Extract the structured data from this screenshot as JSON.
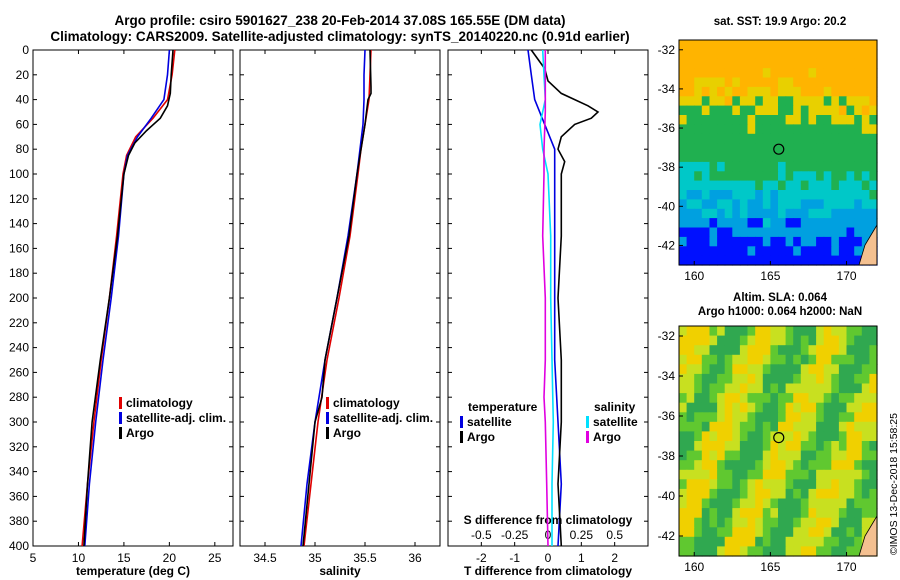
{
  "header": {
    "line1": "Argo profile: csiro 5901627_238 20-Feb-2014 37.08S 165.55E (DM data)",
    "line2": "Climatology: CARS2009. Satellite-adjusted climatology: synTS_20140220.nc (0.91d earlier)"
  },
  "colors": {
    "climatology": "#e00000",
    "satellite": "#0000e0",
    "argo": "#000000",
    "sat_salinity": "#00e0ff",
    "clim_salinity": "#e000e0"
  },
  "chart_data": [
    {
      "type": "line",
      "id": "temperature",
      "xlabel": "temperature (deg C)",
      "ylabel": "",
      "xlim": [
        5,
        27
      ],
      "ylim": [
        0,
        400
      ],
      "y_reversed": true,
      "xticks": [
        "5",
        "10",
        "15",
        "20",
        "25"
      ],
      "yticks": [
        "0",
        "20",
        "40",
        "60",
        "80",
        "100",
        "120",
        "140",
        "160",
        "180",
        "200",
        "220",
        "240",
        "260",
        "280",
        "300",
        "320",
        "340",
        "360",
        "380",
        "400"
      ],
      "legend": [
        "climatology",
        "satellite-adj. clim.",
        "Argo"
      ],
      "series": [
        {
          "name": "climatology",
          "depth": [
            0,
            20,
            40,
            55,
            70,
            85,
            100,
            150,
            200,
            250,
            300,
            350,
            400
          ],
          "values": [
            20.6,
            20.3,
            19.8,
            18.2,
            16.3,
            15.3,
            14.9,
            14.2,
            13.4,
            12.5,
            11.7,
            11.0,
            10.4
          ]
        },
        {
          "name": "satellite-adj. clim.",
          "depth": [
            0,
            20,
            40,
            55,
            70,
            85,
            100,
            150,
            200,
            250,
            300,
            350,
            400
          ],
          "values": [
            20.0,
            19.8,
            19.4,
            18.0,
            16.5,
            15.4,
            15.0,
            14.4,
            13.6,
            12.7,
            11.9,
            11.2,
            10.7
          ]
        },
        {
          "name": "Argo",
          "depth": [
            0,
            20,
            35,
            45,
            55,
            65,
            75,
            85,
            100,
            150,
            200,
            250,
            300,
            350,
            400
          ],
          "values": [
            20.4,
            20.2,
            20.1,
            19.8,
            19.0,
            17.5,
            16.2,
            15.5,
            15.0,
            14.3,
            13.4,
            12.4,
            11.5,
            11.0,
            10.6
          ]
        }
      ]
    },
    {
      "type": "line",
      "id": "salinity",
      "xlabel": "salinity",
      "ylabel": "",
      "xlim": [
        34.25,
        36.25
      ],
      "ylim": [
        0,
        400
      ],
      "y_reversed": true,
      "xticks": [
        "34.5",
        "35",
        "35.5",
        "36"
      ],
      "legend": [
        "climatology",
        "satellite-adj. clim.",
        "Argo"
      ],
      "series": [
        {
          "name": "climatology",
          "depth": [
            0,
            20,
            40,
            60,
            80,
            100,
            150,
            200,
            250,
            300,
            350,
            400
          ],
          "values": [
            35.56,
            35.55,
            35.54,
            35.5,
            35.46,
            35.43,
            35.35,
            35.24,
            35.12,
            35.03,
            34.96,
            34.89
          ]
        },
        {
          "name": "satellite-adj. clim.",
          "depth": [
            0,
            20,
            40,
            60,
            80,
            100,
            150,
            200,
            250,
            300,
            350,
            400
          ],
          "values": [
            35.5,
            35.49,
            35.49,
            35.48,
            35.45,
            35.42,
            35.33,
            35.22,
            35.1,
            35.0,
            34.92,
            34.86
          ]
        },
        {
          "name": "Argo",
          "depth": [
            0,
            30,
            35,
            40,
            60,
            80,
            100,
            150,
            200,
            250,
            280,
            300,
            350,
            400
          ],
          "values": [
            35.55,
            35.56,
            35.56,
            35.53,
            35.5,
            35.46,
            35.42,
            35.34,
            35.22,
            35.1,
            35.07,
            35.0,
            34.94,
            34.88
          ]
        }
      ]
    },
    {
      "type": "line",
      "id": "difference",
      "xlabel": "T difference from climatology",
      "xlabel_top": "S difference from climatology",
      "xlim": [
        -3,
        3
      ],
      "xlim_salinity": [
        -0.75,
        0.75
      ],
      "ylim": [
        0,
        400
      ],
      "y_reversed": true,
      "xticks": [
        "-2",
        "-1",
        "0",
        "1",
        "2"
      ],
      "xticks_salinity": [
        "-0.5",
        "-0.25",
        "0",
        "0.25",
        "0.5"
      ],
      "legend_temperature_title": "temperature",
      "legend_salinity_title": "salinity",
      "legend_temperature": [
        "satellite",
        "Argo"
      ],
      "legend_salinity": [
        "satellite",
        "Argo"
      ],
      "series": [
        {
          "name": "T satellite",
          "depth": [
            0,
            20,
            40,
            60,
            80,
            100,
            150,
            200,
            250,
            300,
            350,
            400
          ],
          "values": [
            -0.6,
            -0.5,
            -0.4,
            -0.1,
            0.2,
            0.2,
            0.2,
            0.2,
            0.2,
            0.3,
            0.4,
            0.3
          ]
        },
        {
          "name": "T Argo",
          "depth": [
            0,
            15,
            25,
            35,
            45,
            50,
            55,
            60,
            70,
            80,
            90,
            100,
            120,
            150,
            200,
            250,
            300,
            350,
            400
          ],
          "values": [
            -0.5,
            -0.1,
            0.0,
            0.4,
            1.2,
            1.5,
            1.3,
            0.8,
            0.4,
            0.3,
            0.5,
            0.4,
            0.4,
            0.4,
            0.3,
            0.4,
            0.4,
            0.3,
            0.4
          ]
        },
        {
          "name": "S satellite",
          "depth": [
            0,
            20,
            40,
            60,
            80,
            100,
            150,
            200,
            250,
            300,
            350,
            400
          ],
          "values": [
            -0.04,
            -0.03,
            -0.02,
            -0.06,
            -0.04,
            0.0,
            0.02,
            0.02,
            0.03,
            0.04,
            0.03,
            0.03
          ]
        },
        {
          "name": "S Argo",
          "depth": [
            0,
            30,
            50,
            80,
            100,
            150,
            200,
            250,
            280,
            300,
            350,
            400
          ],
          "values": [
            -0.02,
            -0.02,
            -0.02,
            -0.03,
            -0.03,
            -0.04,
            -0.02,
            -0.02,
            -0.03,
            -0.02,
            -0.01,
            0.0
          ]
        }
      ]
    },
    {
      "type": "heatmap",
      "id": "sst_map",
      "title": "sat. SST: 19.9 Argo: 20.2",
      "xlim": [
        159,
        172
      ],
      "ylim": [
        -43,
        -31.5
      ],
      "xticks": [
        "160",
        "165",
        "170"
      ],
      "yticks": [
        "-32",
        "-34",
        "-36",
        "-38",
        "-40",
        "-42"
      ],
      "marker": {
        "lon": 165.55,
        "lat": -37.08
      }
    },
    {
      "type": "heatmap",
      "id": "sla_map",
      "title": "Altim. SLA: 0.064",
      "subtitle": "Argo h1000: 0.064 h2000: NaN",
      "xlim": [
        159,
        172
      ],
      "ylim": [
        -43,
        -31.5
      ],
      "xticks": [
        "160",
        "165",
        "170"
      ],
      "yticks": [
        "-32",
        "-34",
        "-36",
        "-38",
        "-40",
        "-42"
      ],
      "marker": {
        "lon": 165.55,
        "lat": -37.08
      }
    }
  ],
  "side_label": "©IMOS 13-Dec-2018 15:58:25"
}
